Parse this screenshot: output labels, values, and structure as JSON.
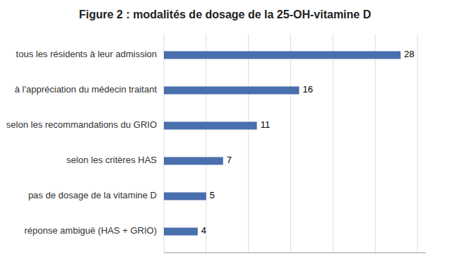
{
  "chart_data": {
    "type": "bar",
    "orientation": "horizontal",
    "title": "Figure 2 : modalités de dosage de la 25-OH-vitamine D",
    "categories": [
      "réponse ambiguë (HAS + GRIO)",
      "pas de dosage de la vitamine D",
      "selon les critères HAS",
      "selon les recommandations du GRIO",
      "à l'appréciation du médecin traitant",
      "tous les résidents à leur admission"
    ],
    "values": [
      4,
      5,
      7,
      11,
      16,
      28
    ],
    "color": "#4a6fad",
    "xlim": [
      0,
      31
    ],
    "xticks": [
      0,
      5,
      10,
      15,
      20,
      25,
      30
    ],
    "grid": true,
    "data_labels": true,
    "tick_labels": "y"
  }
}
